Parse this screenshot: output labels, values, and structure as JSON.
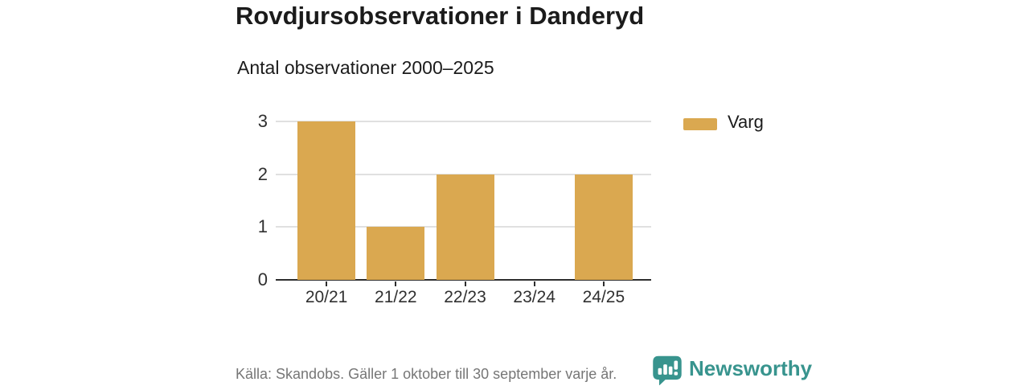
{
  "header": {
    "title": "Rovdjursobservationer i Danderyd",
    "subtitle": "Antal observationer 2000–2025"
  },
  "chart_data": {
    "type": "bar",
    "categories": [
      "20/21",
      "21/22",
      "22/23",
      "23/24",
      "24/25"
    ],
    "series": [
      {
        "name": "Varg",
        "values": [
          3,
          1,
          2,
          0,
          2
        ]
      }
    ],
    "title": "Rovdjursobservationer i Danderyd",
    "subtitle": "Antal observationer 2000–2025",
    "xlabel": "",
    "ylabel": "",
    "ylim": [
      0,
      3
    ],
    "yticks": [
      0,
      1,
      2,
      3
    ],
    "grid": true,
    "legend_position": "right",
    "bar_color": "#DAA850"
  },
  "legend": {
    "items": [
      {
        "label": "Varg",
        "color": "#DAA850"
      }
    ]
  },
  "footer": {
    "source": "Källa: Skandobs. Gäller 1 oktober till 30 september varje år.",
    "brand": "Newsworthy"
  },
  "icons": {
    "brand_icon": "newsworthy-speech-bubble-chart-icon"
  },
  "colors": {
    "bar": "#DAA850",
    "teal": "#38948E",
    "grid": "#E0E0E0",
    "axis": "#2D2D2D",
    "text_dark": "#1B1B1B",
    "text_muted": "#767676"
  }
}
